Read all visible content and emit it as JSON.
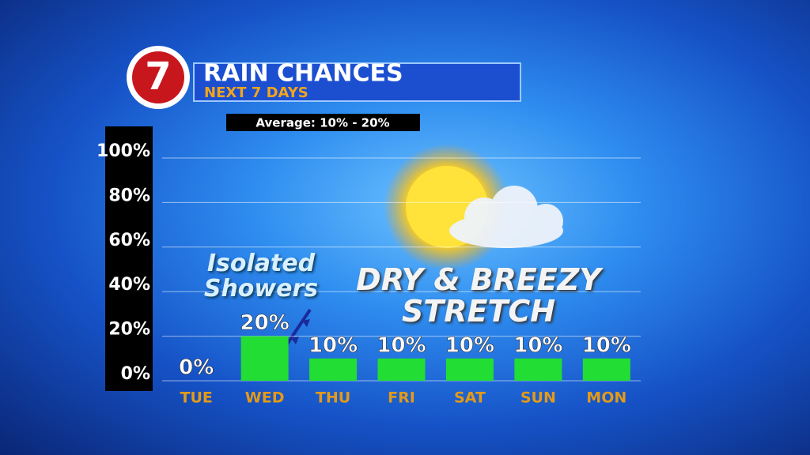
{
  "chart_data": {
    "type": "bar",
    "logo": "7",
    "title": "RAIN CHANCES",
    "subtitle": "NEXT 7 DAYS",
    "note": "Average: 10% - 20%",
    "annotations": [
      "Isolated Showers",
      "DRY & BREEZY STRETCH"
    ],
    "categories": [
      "TUE",
      "WED",
      "THU",
      "FRI",
      "SAT",
      "SUN",
      "MON"
    ],
    "values": [
      0,
      20,
      10,
      10,
      10,
      10,
      10
    ],
    "value_labels": [
      "0%",
      "20%",
      "10%",
      "10%",
      "10%",
      "10%",
      "10%"
    ],
    "color": "#22dd33",
    "ylim": [
      0,
      100
    ],
    "yticks": [
      {
        "value": 0,
        "label": "0%"
      },
      {
        "value": 20,
        "label": "20%"
      },
      {
        "value": 40,
        "label": "40%"
      },
      {
        "value": 60,
        "label": "60%"
      },
      {
        "value": 80,
        "label": "80%"
      },
      {
        "value": 100,
        "label": "100%"
      }
    ],
    "grid": true
  }
}
